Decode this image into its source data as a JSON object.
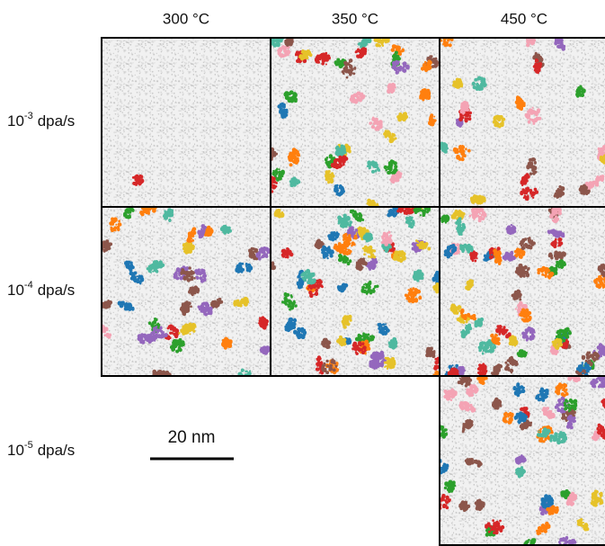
{
  "columns": [
    "300 °C",
    "350 °C",
    "450 °C"
  ],
  "rows": [
    {
      "base": "10",
      "exponent": "-3",
      "unit": "dpa/s"
    },
    {
      "base": "10",
      "exponent": "-4",
      "unit": "dpa/s"
    },
    {
      "base": "10",
      "exponent": "-5",
      "unit": "dpa/s"
    }
  ],
  "scale_bar": "20 nm"
}
